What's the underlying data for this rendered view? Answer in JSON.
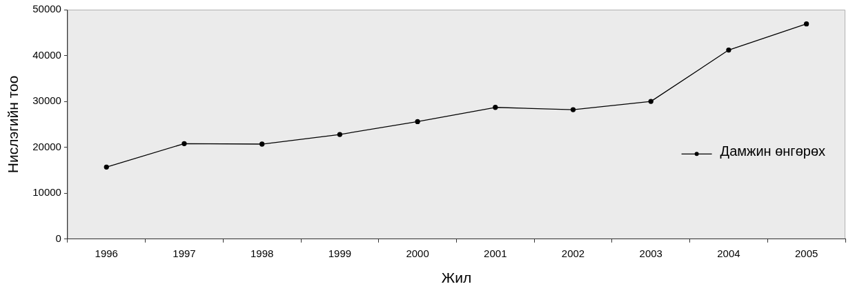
{
  "chart_data": {
    "type": "line",
    "xlabel": "Жил",
    "ylabel": "Нислэгийн тоо",
    "categories": [
      "1996",
      "1997",
      "1998",
      "1999",
      "2000",
      "2001",
      "2002",
      "2003",
      "2004",
      "2005"
    ],
    "series": [
      {
        "name": "Дамжин өнгөрөх",
        "color": "#000000",
        "values": [
          15700,
          20800,
          20700,
          22800,
          25600,
          28700,
          28200,
          30000,
          41200,
          46900
        ]
      }
    ],
    "ylim": [
      0,
      50000
    ],
    "yticks": [
      0,
      10000,
      20000,
      30000,
      40000,
      50000
    ],
    "grid": false,
    "legend": "right",
    "marker": "circle",
    "line_style": "solid"
  }
}
